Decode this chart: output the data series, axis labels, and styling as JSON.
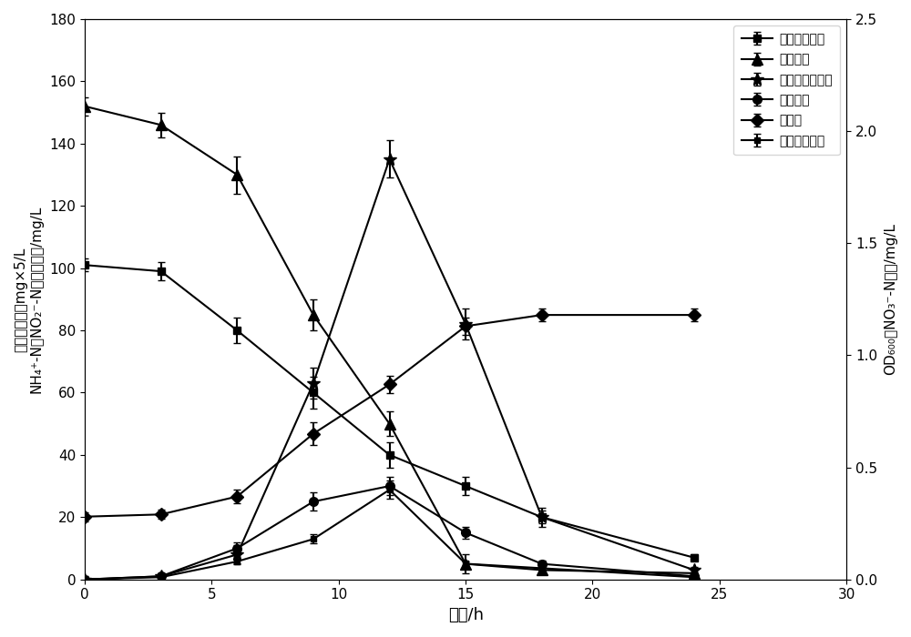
{
  "time": [
    0,
    3,
    6,
    9,
    12,
    15,
    18,
    24
  ],
  "succinate": [
    101,
    99,
    80,
    60,
    40,
    30,
    20,
    7
  ],
  "succinate_err": [
    2,
    3,
    4,
    5,
    4,
    3,
    2,
    1
  ],
  "ammonia": [
    152,
    146,
    130,
    85,
    50,
    5,
    3,
    2
  ],
  "ammonia_err": [
    3,
    4,
    6,
    5,
    4,
    3,
    1,
    1
  ],
  "nitrite": [
    0,
    1,
    8,
    63,
    135,
    82,
    20,
    3
  ],
  "nitrite_err": [
    1,
    1,
    3,
    5,
    6,
    5,
    3,
    1
  ],
  "hydroxylamine": [
    0,
    1,
    10,
    25,
    30,
    15,
    5,
    1
  ],
  "hydroxylamine_err": [
    0,
    1,
    2,
    3,
    3,
    2,
    1,
    0
  ],
  "biomass_od": [
    0.28,
    0.29,
    0.37,
    0.65,
    0.87,
    1.13,
    1.18,
    1.18
  ],
  "biomass_err": [
    0.02,
    0.02,
    0.03,
    0.05,
    0.04,
    0.04,
    0.03,
    0.03
  ],
  "nitrate": [
    0.0,
    0.01,
    0.08,
    0.18,
    0.4,
    0.07,
    0.05,
    0.01
  ],
  "nitrate_err": [
    0.0,
    0.005,
    0.01,
    0.02,
    0.04,
    0.01,
    0.01,
    0.005
  ],
  "left_ylim": [
    0,
    180
  ],
  "right_ylim": [
    0.0,
    2.5
  ],
  "xlim": [
    0,
    30
  ],
  "xticks": [
    0,
    5,
    10,
    15,
    20,
    25,
    30
  ],
  "left_yticks": [
    0,
    20,
    40,
    60,
    80,
    100,
    120,
    140,
    160,
    180
  ],
  "right_yticks": [
    0.0,
    0.5,
    1.0,
    1.5,
    2.0,
    2.5
  ],
  "xlabel": "时间/h",
  "left_ylabel_line1": "琥珀酸盐浓度mg×5/L",
  "left_ylabel_line2": "NH₄⁺-N、NO₂⁻-N和羟胺浓度/mg/L",
  "right_ylabel": "OD₆₀₀和NO₃⁻-N浓度/mg/L",
  "legend_labels": [
    "琥珀酸盐浓度",
    "氨氮浓度",
    "亚砕酸态氮浓度",
    "羟胺浓度",
    "生物量",
    "砕酸态氮浓度"
  ],
  "line_color": "#000000",
  "bg_color": "#ffffff",
  "title_fontsize": 11,
  "label_fontsize": 11,
  "tick_fontsize": 11,
  "legend_fontsize": 10
}
